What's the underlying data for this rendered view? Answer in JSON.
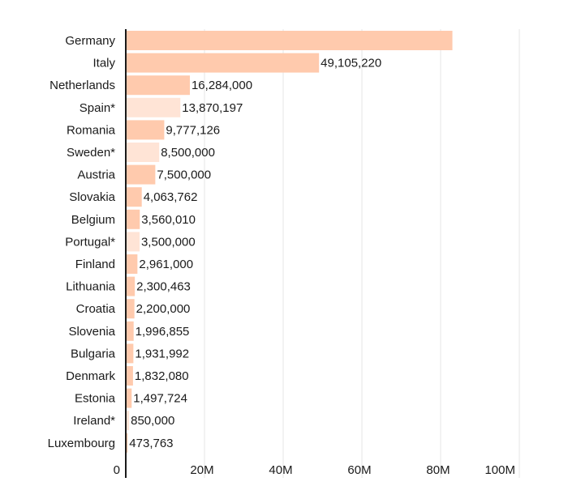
{
  "chart_data": {
    "type": "bar",
    "orientation": "horizontal",
    "title": "",
    "xlabel": "",
    "ylabel": "",
    "xlim": [
      0,
      100000000
    ],
    "grid": true,
    "legend": "none",
    "x_ticks": [
      {
        "value": 0,
        "label": "0"
      },
      {
        "value": 20000000,
        "label": "20M"
      },
      {
        "value": 40000000,
        "label": "40M"
      },
      {
        "value": 60000000,
        "label": "60M"
      },
      {
        "value": 80000000,
        "label": "80M"
      },
      {
        "value": 100000000,
        "label": "100M"
      }
    ],
    "colors": {
      "bar": "#ffcaad",
      "bar_estimated": "#ffe4d6",
      "axis": "#1a1a1a",
      "grid": "#e6e6e6",
      "text": "#1a1a1a"
    },
    "bars": [
      {
        "category": "Germany",
        "value": 83000000,
        "label": "",
        "estimated": false
      },
      {
        "category": "Italy",
        "value": 49105220,
        "label": "49,105,220",
        "estimated": false
      },
      {
        "category": "Netherlands",
        "value": 16284000,
        "label": "16,284,000",
        "estimated": false
      },
      {
        "category": "Spain*",
        "value": 13870197,
        "label": "13,870,197",
        "estimated": true
      },
      {
        "category": "Romania",
        "value": 9777126,
        "label": "9,777,126",
        "estimated": false
      },
      {
        "category": "Sweden*",
        "value": 8500000,
        "label": "8,500,000",
        "estimated": true
      },
      {
        "category": "Austria",
        "value": 7500000,
        "label": "7,500,000",
        "estimated": false
      },
      {
        "category": "Slovakia",
        "value": 4063762,
        "label": "4,063,762",
        "estimated": false
      },
      {
        "category": "Belgium",
        "value": 3560010,
        "label": "3,560,010",
        "estimated": false
      },
      {
        "category": "Portugal*",
        "value": 3500000,
        "label": "3,500,000",
        "estimated": true
      },
      {
        "category": "Finland",
        "value": 2961000,
        "label": "2,961,000",
        "estimated": false
      },
      {
        "category": "Lithuania",
        "value": 2300463,
        "label": "2,300,463",
        "estimated": false
      },
      {
        "category": "Croatia",
        "value": 2200000,
        "label": "2,200,000",
        "estimated": false
      },
      {
        "category": "Slovenia",
        "value": 1996855,
        "label": "1,996,855",
        "estimated": false
      },
      {
        "category": "Bulgaria",
        "value": 1931992,
        "label": "1,931,992",
        "estimated": false
      },
      {
        "category": "Denmark",
        "value": 1832080,
        "label": "1,832,080",
        "estimated": false
      },
      {
        "category": "Estonia",
        "value": 1497724,
        "label": "1,497,724",
        "estimated": false
      },
      {
        "category": "Ireland*",
        "value": 850000,
        "label": "850,000",
        "estimated": true
      },
      {
        "category": "Luxembourg",
        "value": 473763,
        "label": "473,763",
        "estimated": false
      }
    ]
  }
}
